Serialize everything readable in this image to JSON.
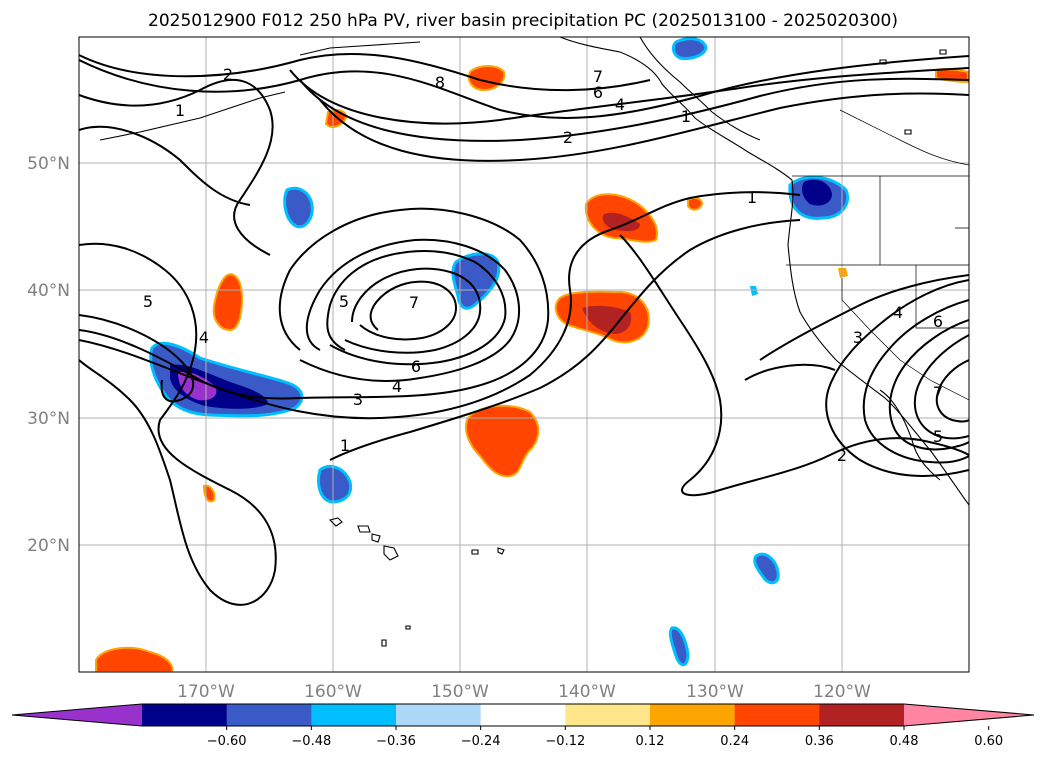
{
  "title": "2025012900 F012 250 hPa PV, river basin precipitation PC (2025013100 - 2025020300)",
  "map": {
    "lat_labels": [
      "50°N",
      "40°N",
      "30°N",
      "20°N"
    ],
    "lon_labels": [
      "170°W",
      "160°W",
      "150°W",
      "140°W",
      "130°W",
      "120°W"
    ],
    "contour_labels": [
      "2",
      "1",
      "8",
      "7",
      "6",
      "4",
      "2",
      "1",
      "5",
      "4",
      "5",
      "7",
      "6",
      "4",
      "3",
      "1",
      "1",
      "3",
      "4",
      "6",
      "7",
      "5",
      "2"
    ]
  },
  "colorbar": {
    "ticks": [
      "−0.60",
      "−0.48",
      "−0.36",
      "−0.24",
      "−0.12",
      "0.12",
      "0.24",
      "0.36",
      "0.48",
      "0.60"
    ],
    "colors": [
      "#9932cc",
      "#00008b",
      "#3a5bc7",
      "#00bfff",
      "#add8f7",
      "#ffffff",
      "#ffe68a",
      "#ffa500",
      "#ff4500",
      "#b22222",
      "#ff85a2"
    ]
  }
}
